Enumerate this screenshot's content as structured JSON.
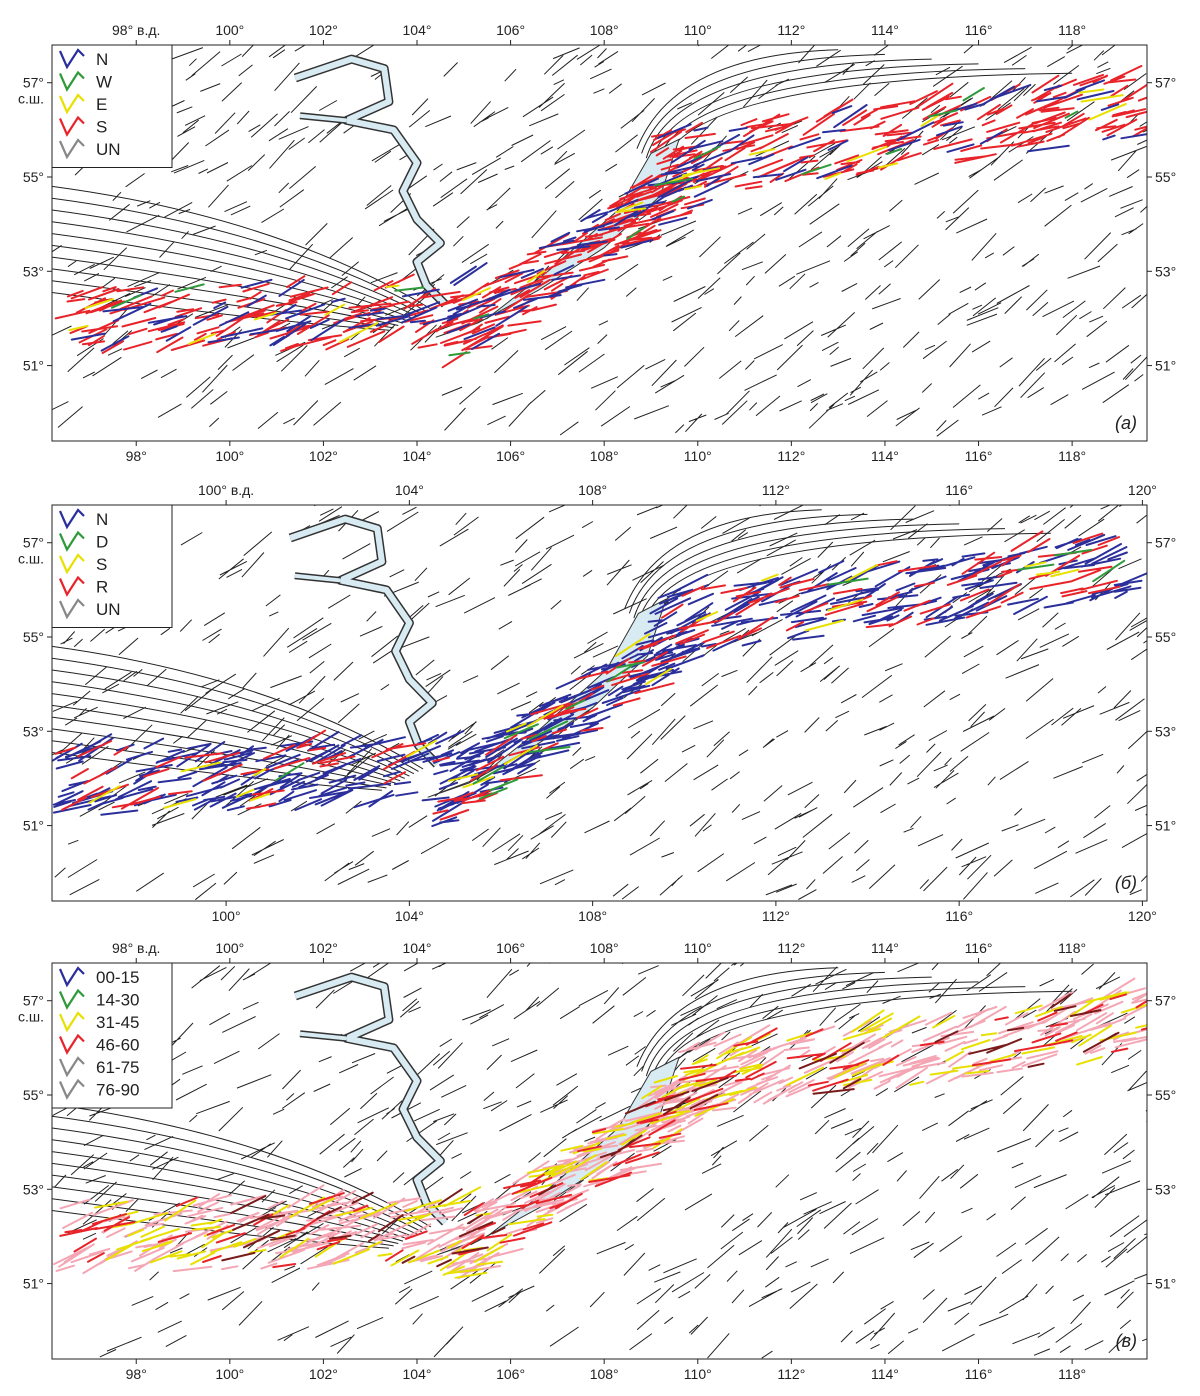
{
  "panels": [
    {
      "id": "a",
      "label": "(а)",
      "lon_range": [
        96.2,
        119.6
      ],
      "lat_range": [
        49.4,
        57.8
      ],
      "top_ticks": [
        {
          "lon": 98,
          "text": "98° в.д."
        },
        {
          "lon": 100,
          "text": "100°"
        },
        {
          "lon": 102,
          "text": "102°"
        },
        {
          "lon": 104,
          "text": "104°"
        },
        {
          "lon": 106,
          "text": "106°"
        },
        {
          "lon": 108,
          "text": "108°"
        },
        {
          "lon": 110,
          "text": "110°"
        },
        {
          "lon": 112,
          "text": "112°"
        },
        {
          "lon": 114,
          "text": "114°"
        },
        {
          "lon": 116,
          "text": "116°"
        },
        {
          "lon": 118,
          "text": "118°"
        }
      ],
      "bottom_ticks": [
        {
          "lon": 98,
          "text": "98°"
        },
        {
          "lon": 100,
          "text": "100°"
        },
        {
          "lon": 102,
          "text": "102°"
        },
        {
          "lon": 104,
          "text": "104°"
        },
        {
          "lon": 106,
          "text": "106°"
        },
        {
          "lon": 108,
          "text": "108°"
        },
        {
          "lon": 110,
          "text": "110°"
        },
        {
          "lon": 112,
          "text": "112°"
        },
        {
          "lon": 114,
          "text": "114°"
        },
        {
          "lon": 116,
          "text": "116°"
        },
        {
          "lon": 118,
          "text": "118°"
        }
      ],
      "left_ticks": [
        {
          "lat": 57,
          "text": "57°",
          "sub": "с.ш."
        },
        {
          "lat": 55,
          "text": "55°"
        },
        {
          "lat": 53,
          "text": "53°"
        },
        {
          "lat": 51,
          "text": "51°"
        }
      ],
      "right_ticks": [
        {
          "lat": 57,
          "text": "57°"
        },
        {
          "lat": 55,
          "text": "55°"
        },
        {
          "lat": 53,
          "text": "53°"
        },
        {
          "lat": 51,
          "text": "51°"
        }
      ],
      "legend": [
        {
          "text": "N",
          "color": "#2b2f9c"
        },
        {
          "text": "W",
          "color": "#2e9a3a"
        },
        {
          "text": "E",
          "color": "#e8e000"
        },
        {
          "text": "S",
          "color": "#e8242a"
        },
        {
          "text": "UN",
          "color": "#888888"
        }
      ],
      "main_color": "#e8242a",
      "secondary_color": "#2b2f9c"
    },
    {
      "id": "b",
      "label": "(б)",
      "lon_range": [
        96.2,
        120.1
      ],
      "lat_range": [
        49.4,
        57.8
      ],
      "top_ticks": [
        {
          "lon": 100,
          "text": "100° в.д."
        },
        {
          "lon": 104,
          "text": "104°"
        },
        {
          "lon": 108,
          "text": "108°"
        },
        {
          "lon": 112,
          "text": "112°"
        },
        {
          "lon": 116,
          "text": "116°"
        },
        {
          "lon": 120,
          "text": "120°"
        }
      ],
      "bottom_ticks": [
        {
          "lon": 100,
          "text": "100°"
        },
        {
          "lon": 104,
          "text": "104°"
        },
        {
          "lon": 108,
          "text": "108°"
        },
        {
          "lon": 112,
          "text": "112°"
        },
        {
          "lon": 116,
          "text": "116°"
        },
        {
          "lon": 120,
          "text": "120°"
        }
      ],
      "left_ticks": [
        {
          "lat": 57,
          "text": "57°",
          "sub": "с.ш."
        },
        {
          "lat": 55,
          "text": "55°"
        },
        {
          "lat": 53,
          "text": "53°"
        },
        {
          "lat": 51,
          "text": "51°"
        }
      ],
      "right_ticks": [
        {
          "lat": 57,
          "text": "57°"
        },
        {
          "lat": 55,
          "text": "55°"
        },
        {
          "lat": 53,
          "text": "53°"
        },
        {
          "lat": 51,
          "text": "51°"
        }
      ],
      "legend": [
        {
          "text": "N",
          "color": "#2b2f9c"
        },
        {
          "text": "D",
          "color": "#2e9a3a"
        },
        {
          "text": "S",
          "color": "#e8e000"
        },
        {
          "text": "R",
          "color": "#e8242a"
        },
        {
          "text": "UN",
          "color": "#888888"
        }
      ],
      "main_color": "#2b2f9c",
      "secondary_color": "#e8242a"
    },
    {
      "id": "v",
      "label": "(в)",
      "lon_range": [
        96.2,
        119.6
      ],
      "lat_range": [
        49.4,
        57.8
      ],
      "top_ticks": [
        {
          "lon": 98,
          "text": "98° в.д."
        },
        {
          "lon": 100,
          "text": "100°"
        },
        {
          "lon": 102,
          "text": "102°"
        },
        {
          "lon": 104,
          "text": "104°"
        },
        {
          "lon": 106,
          "text": "106°"
        },
        {
          "lon": 108,
          "text": "108°"
        },
        {
          "lon": 110,
          "text": "110°"
        },
        {
          "lon": 112,
          "text": "112°"
        },
        {
          "lon": 114,
          "text": "114°"
        },
        {
          "lon": 116,
          "text": "116°"
        },
        {
          "lon": 118,
          "text": "118°"
        }
      ],
      "bottom_ticks": [
        {
          "lon": 98,
          "text": "98°"
        },
        {
          "lon": 100,
          "text": "100°"
        },
        {
          "lon": 102,
          "text": "102°"
        },
        {
          "lon": 104,
          "text": "104°"
        },
        {
          "lon": 106,
          "text": "106°"
        },
        {
          "lon": 108,
          "text": "108°"
        },
        {
          "lon": 110,
          "text": "110°"
        },
        {
          "lon": 112,
          "text": "112°"
        },
        {
          "lon": 114,
          "text": "114°"
        },
        {
          "lon": 116,
          "text": "116°"
        },
        {
          "lon": 118,
          "text": "118°"
        }
      ],
      "left_ticks": [
        {
          "lat": 57,
          "text": "57°",
          "sub": "с.ш."
        },
        {
          "lat": 55,
          "text": "55°"
        },
        {
          "lat": 53,
          "text": "53°"
        },
        {
          "lat": 51,
          "text": "51°"
        }
      ],
      "right_ticks": [
        {
          "lat": 57,
          "text": "57°"
        },
        {
          "lat": 55,
          "text": "55°"
        },
        {
          "lat": 53,
          "text": "53°"
        },
        {
          "lat": 51,
          "text": "51°"
        }
      ],
      "legend": [
        {
          "text": "00-15",
          "color": "#2b2f9c"
        },
        {
          "text": "14-30",
          "color": "#2e9a3a"
        },
        {
          "text": "31-45",
          "color": "#e8e000"
        },
        {
          "text": "46-60",
          "color": "#e8242a"
        },
        {
          "text": "61-75",
          "color": "#888888"
        },
        {
          "text": "76-90",
          "color": "#888888"
        }
      ],
      "main_color": "#f4a6b4",
      "secondary_color": "#e8e000"
    }
  ]
}
